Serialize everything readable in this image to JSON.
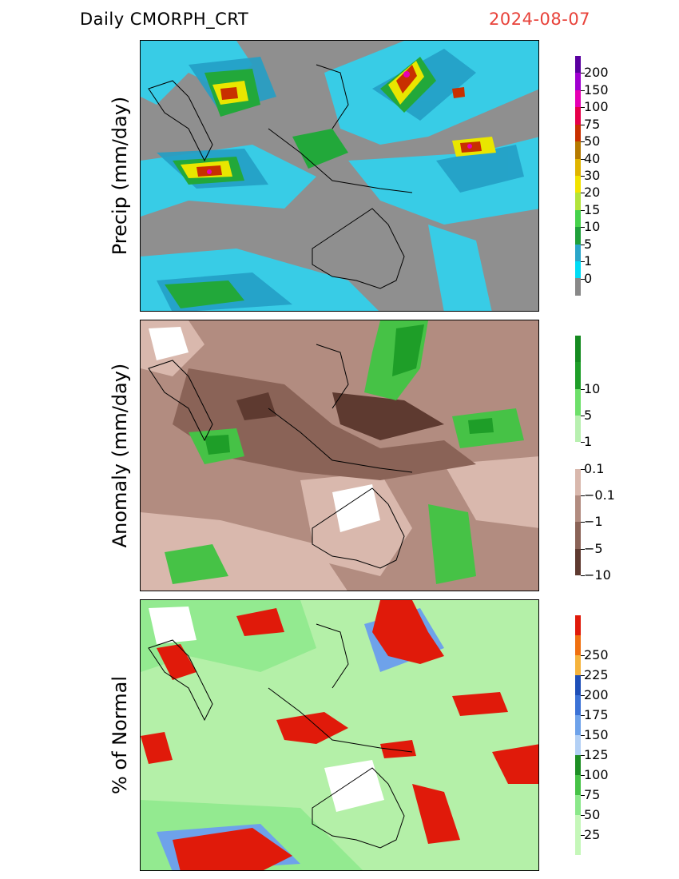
{
  "header": {
    "title": "Daily  CMORPH_CRT",
    "date": "2024-08-07",
    "date_color": "#e8423a"
  },
  "panels": [
    {
      "name": "precip",
      "ylabel": "Precip  (mm/day)",
      "legend": [
        {
          "label": "0",
          "color": "#00dcf5"
        },
        {
          "label": "1",
          "color": "#2aa6c9"
        },
        {
          "label": "5",
          "color": "#1fa03a"
        },
        {
          "label": "10",
          "color": "#46d24b"
        },
        {
          "label": "15",
          "color": "#b3e43b"
        },
        {
          "label": "20",
          "color": "#f2e300"
        },
        {
          "label": "30",
          "color": "#e0b400"
        },
        {
          "label": "40",
          "color": "#b57a00"
        },
        {
          "label": "50",
          "color": "#c83000"
        },
        {
          "label": "75",
          "color": "#e6004a"
        },
        {
          "label": "100",
          "color": "#e600b4"
        },
        {
          "label": "150",
          "color": "#a000d0"
        },
        {
          "label": "200",
          "color": "#5a00a0"
        }
      ],
      "below_color": "#888888"
    },
    {
      "name": "anomaly",
      "ylabel": "Anomaly  (mm/day)",
      "legend": [
        {
          "label": "−10",
          "color": "#5e3a30"
        },
        {
          "label": "−5",
          "color": "#8a6357"
        },
        {
          "label": "−1",
          "color": "#b28c80"
        },
        {
          "label": "−0.1",
          "color": "#d9b8ad"
        },
        {
          "label": "0.1",
          "color": "#ffffff"
        },
        {
          "label": "1",
          "color": "#b8f0b0"
        },
        {
          "label": "5",
          "color": "#6ee06a"
        },
        {
          "label": "10",
          "color": "#1e9e28"
        }
      ],
      "top_color": "#158a20"
    },
    {
      "name": "percent",
      "ylabel": "%  of  Normal",
      "legend": [
        {
          "label": "25",
          "color": "#c5f7b9"
        },
        {
          "label": "50",
          "color": "#8be88a"
        },
        {
          "label": "75",
          "color": "#46c246"
        },
        {
          "label": "100",
          "color": "#1d8e24"
        },
        {
          "label": "125",
          "color": "#b3d0f5"
        },
        {
          "label": "150",
          "color": "#6ea2ea"
        },
        {
          "label": "175",
          "color": "#3b72d6"
        },
        {
          "label": "200",
          "color": "#1e4fb8"
        },
        {
          "label": "225",
          "color": "#f5b33c"
        },
        {
          "label": "250",
          "color": "#f07010"
        },
        {
          "label": "",
          "color": "#e01a0a"
        }
      ],
      "bottom_color": "#c5f7b9"
    }
  ]
}
